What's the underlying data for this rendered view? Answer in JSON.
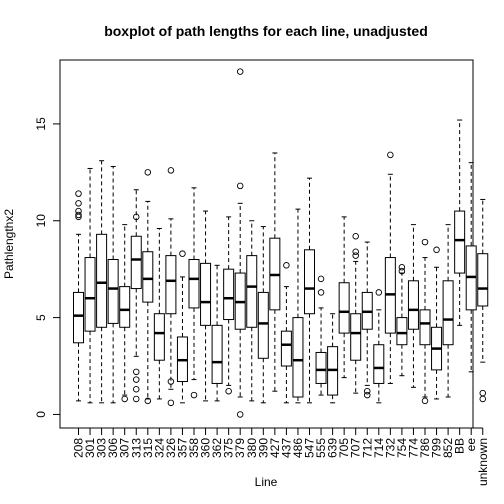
{
  "chart_data": {
    "type": "boxplot",
    "title": "boxplot of path lengths for each line, unadjusted",
    "xlabel": "Line",
    "ylabel": "Pathlengthx2",
    "ylim": [
      -0.7,
      18.3
    ],
    "yticks": [
      0,
      5,
      10,
      15
    ],
    "grid": false,
    "legend": "none",
    "categories": [
      "208",
      "301",
      "303",
      "306",
      "307",
      "313",
      "315",
      "324",
      "326",
      "357",
      "358",
      "360",
      "362",
      "375",
      "379",
      "380",
      "390",
      "427",
      "437",
      "486",
      "547",
      "555",
      "639",
      "705",
      "707",
      "712",
      "714",
      "732",
      "754",
      "774",
      "786",
      "799",
      "852",
      "BB",
      "ee",
      "unknown"
    ],
    "boxes": [
      {
        "min": 0.7,
        "q1": 3.7,
        "median": 5.1,
        "q3": 6.3,
        "max": 9.3,
        "outliers": [
          10.2,
          10.3,
          10.5,
          10.9,
          11.4
        ]
      },
      {
        "min": 0.6,
        "q1": 4.3,
        "median": 6.0,
        "q3": 8.1,
        "max": 12.7,
        "outliers": []
      },
      {
        "min": 0.6,
        "q1": 4.5,
        "median": 6.8,
        "q3": 9.3,
        "max": 13.1,
        "outliers": []
      },
      {
        "min": 0.6,
        "q1": 4.7,
        "median": 6.5,
        "q3": 8.0,
        "max": 12.8,
        "outliers": []
      },
      {
        "min": 1.0,
        "q1": 4.5,
        "median": 5.4,
        "q3": 6.6,
        "max": 9.8,
        "outliers": [
          0.8
        ]
      },
      {
        "min": 3.0,
        "q1": 6.5,
        "median": 8.0,
        "q3": 9.2,
        "max": 11.6,
        "outliers": [
          0.8,
          1.3,
          1.8,
          2.2,
          10.2
        ]
      },
      {
        "min": 0.8,
        "q1": 5.8,
        "median": 7.0,
        "q3": 8.4,
        "max": 11.0,
        "outliers": [
          0.7,
          12.5
        ]
      },
      {
        "min": 0.8,
        "q1": 2.8,
        "median": 4.2,
        "q3": 5.2,
        "max": 9.6,
        "outliers": []
      },
      {
        "min": 1.3,
        "q1": 5.2,
        "median": 6.9,
        "q3": 8.2,
        "max": 10.1,
        "outliers": [
          12.6,
          0.6,
          1.7
        ]
      },
      {
        "min": 0.6,
        "q1": 1.7,
        "median": 2.8,
        "q3": 4.0,
        "max": 7.1,
        "outliers": [
          8.3
        ]
      },
      {
        "min": 1.8,
        "q1": 5.5,
        "median": 7.0,
        "q3": 8.0,
        "max": 11.7,
        "outliers": [
          1.0
        ]
      },
      {
        "min": 0.7,
        "q1": 4.6,
        "median": 5.8,
        "q3": 7.8,
        "max": 10.5,
        "outliers": []
      },
      {
        "min": 0.7,
        "q1": 1.6,
        "median": 2.7,
        "q3": 4.6,
        "max": 7.7,
        "outliers": []
      },
      {
        "min": 1.5,
        "q1": 4.9,
        "median": 6.0,
        "q3": 7.5,
        "max": 10.2,
        "outliers": [
          1.2
        ]
      },
      {
        "min": 0.9,
        "q1": 4.4,
        "median": 5.8,
        "q3": 7.3,
        "max": 10.9,
        "outliers": [
          11.8,
          17.7,
          0.0
        ]
      },
      {
        "min": 0.7,
        "q1": 4.5,
        "median": 6.6,
        "q3": 8.2,
        "max": 10.0,
        "outliers": []
      },
      {
        "min": 0.6,
        "q1": 2.9,
        "median": 4.7,
        "q3": 6.3,
        "max": 9.7,
        "outliers": []
      },
      {
        "min": 1.2,
        "q1": 5.4,
        "median": 7.2,
        "q3": 9.1,
        "max": 13.5,
        "outliers": []
      },
      {
        "min": 0.6,
        "q1": 2.5,
        "median": 3.6,
        "q3": 4.3,
        "max": 6.6,
        "outliers": [
          7.7
        ]
      },
      {
        "min": 0.6,
        "q1": 0.9,
        "median": 2.8,
        "q3": 5.0,
        "max": 10.6,
        "outliers": []
      },
      {
        "min": 0.6,
        "q1": 5.2,
        "median": 6.5,
        "q3": 8.5,
        "max": 12.2,
        "outliers": []
      },
      {
        "min": 1.0,
        "q1": 1.6,
        "median": 2.3,
        "q3": 3.2,
        "max": 5.5,
        "outliers": [
          7.0,
          6.3
        ]
      },
      {
        "min": 0.6,
        "q1": 1.0,
        "median": 2.3,
        "q3": 3.5,
        "max": 5.2,
        "outliers": []
      },
      {
        "min": 1.9,
        "q1": 4.2,
        "median": 5.3,
        "q3": 6.8,
        "max": 10.2,
        "outliers": []
      },
      {
        "min": 1.1,
        "q1": 2.8,
        "median": 4.2,
        "q3": 5.2,
        "max": 7.9,
        "outliers": [
          9.2,
          8.2,
          8.4
        ]
      },
      {
        "min": 1.5,
        "q1": 4.4,
        "median": 5.3,
        "q3": 6.3,
        "max": 8.9,
        "outliers": [
          1.0,
          1.2
        ]
      },
      {
        "min": 0.6,
        "q1": 1.6,
        "median": 2.4,
        "q3": 3.6,
        "max": 5.4,
        "outliers": [
          6.3
        ]
      },
      {
        "min": 1.6,
        "q1": 4.2,
        "median": 6.2,
        "q3": 8.1,
        "max": 12.4,
        "outliers": [
          13.4
        ]
      },
      {
        "min": 2.0,
        "q1": 3.6,
        "median": 4.2,
        "q3": 5.0,
        "max": 7.3,
        "outliers": [
          7.4,
          7.6
        ]
      },
      {
        "min": 1.4,
        "q1": 4.4,
        "median": 5.4,
        "q3": 6.9,
        "max": 9.8,
        "outliers": []
      },
      {
        "min": 0.9,
        "q1": 3.6,
        "median": 4.7,
        "q3": 5.4,
        "max": 8.1,
        "outliers": [
          8.9,
          0.7
        ]
      },
      {
        "min": 0.8,
        "q1": 2.3,
        "median": 3.4,
        "q3": 4.5,
        "max": 7.6,
        "outliers": [
          8.5
        ]
      },
      {
        "min": 0.9,
        "q1": 3.6,
        "median": 4.9,
        "q3": 6.9,
        "max": 9.8,
        "outliers": []
      },
      {
        "min": 4.6,
        "q1": 7.3,
        "median": 9.0,
        "q3": 10.5,
        "max": 15.2,
        "outliers": []
      },
      {
        "min": 2.2,
        "q1": 5.4,
        "median": 7.1,
        "q3": 8.7,
        "max": 13.0,
        "outliers": []
      },
      {
        "min": 2.7,
        "q1": 5.6,
        "median": 6.5,
        "q3": 8.3,
        "max": 11.1,
        "outliers": [
          0.8,
          1.1
        ]
      }
    ]
  }
}
